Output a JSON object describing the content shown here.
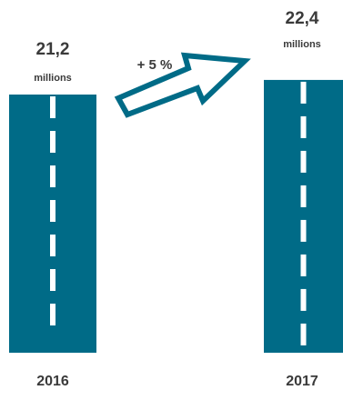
{
  "chart_data": {
    "type": "bar",
    "categories": [
      "2016",
      "2017"
    ],
    "values": [
      21.2,
      22.4
    ],
    "value_labels": [
      "21,2",
      "22,4"
    ],
    "unit_label": "millions",
    "change_label": "+ 5 %",
    "bar_color": "#006b87",
    "dash_color": "#ffffff",
    "arrow_color": "#006b87"
  }
}
